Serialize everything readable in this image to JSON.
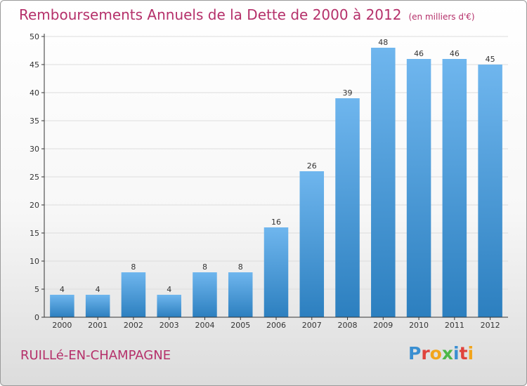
{
  "title": "Remboursements Annuels de la Dette de 2000 à 2012",
  "title_unit": "(en milliers d'€)",
  "commune": "RUILLé-EN-CHAMPAGNE",
  "logo": {
    "text": "Proxiti",
    "letter_colors": [
      "#3a8fd1",
      "#e0433c",
      "#f2a51c",
      "#4db848",
      "#3a8fd1",
      "#e0433c",
      "#f2a51c"
    ]
  },
  "colors": {
    "bar_top": "#6fb6ee",
    "bar_bottom": "#2c7fbf",
    "title": "#b5306a",
    "grid": "#dddddd",
    "axis": "#333333"
  },
  "chart_data": {
    "type": "bar",
    "title": "Remboursements Annuels de la Dette de 2000 à 2012",
    "subtitle": "(en milliers d'€)",
    "categories": [
      "2000",
      "2001",
      "2002",
      "2003",
      "2004",
      "2005",
      "2006",
      "2007",
      "2008",
      "2009",
      "2010",
      "2011",
      "2012"
    ],
    "values": [
      4,
      4,
      8,
      4,
      8,
      8,
      16,
      26,
      39,
      48,
      46,
      46,
      45
    ],
    "ylim": [
      0,
      50
    ],
    "yticks": [
      0,
      5,
      10,
      15,
      20,
      25,
      30,
      35,
      40,
      45,
      50
    ],
    "grid": true,
    "data_labels": true
  }
}
